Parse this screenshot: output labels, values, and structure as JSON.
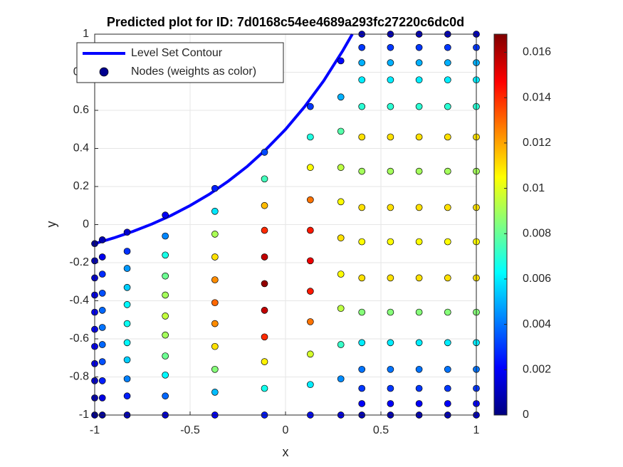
{
  "chart_data": {
    "type": "scatter",
    "title": "Predicted plot for ID: 7d0168c54ee4689a293fc27220c6dc0d",
    "xlabel": "x",
    "ylabel": "y",
    "xlim": [
      -1,
      1
    ],
    "ylim": [
      -1,
      1
    ],
    "xticks": [
      -1,
      -0.5,
      0,
      0.5,
      1
    ],
    "yticks": [
      -1,
      -0.8,
      -0.6,
      -0.4,
      -0.2,
      0,
      0.2,
      0.4,
      0.6,
      0.8,
      1
    ],
    "grid": true,
    "legend": "upper left",
    "colormap": "jet",
    "clim": [
      0,
      0.0168
    ],
    "cticks": [
      0,
      0.002,
      0.004,
      0.006,
      0.008,
      0.01,
      0.012,
      0.014,
      0.016
    ],
    "contour": {
      "name": "Level Set Contour",
      "color": "#0000ff",
      "x": [
        -1,
        -0.9,
        -0.8,
        -0.7,
        -0.6,
        -0.5,
        -0.4,
        -0.3,
        -0.2,
        -0.1,
        0,
        0.1,
        0.2,
        0.3,
        0.35
      ],
      "y": [
        -0.1,
        -0.07,
        -0.036,
        0.003,
        0.048,
        0.1,
        0.159,
        0.228,
        0.306,
        0.397,
        0.5,
        0.619,
        0.755,
        0.913,
        1
      ]
    },
    "series": [
      {
        "name": "Nodes (weights as color)",
        "color": "#00008f",
        "x": [
          -1,
          -1,
          -1,
          -1,
          -1,
          -1,
          -1,
          -1,
          -1,
          -1,
          -1,
          -0.96,
          -0.96,
          -0.96,
          -0.96,
          -0.96,
          -0.96,
          -0.96,
          -0.96,
          -0.96,
          -0.96,
          -0.96,
          -0.83,
          -0.83,
          -0.83,
          -0.83,
          -0.83,
          -0.83,
          -0.83,
          -0.83,
          -0.83,
          -0.83,
          -0.83,
          -0.63,
          -0.63,
          -0.63,
          -0.63,
          -0.63,
          -0.63,
          -0.63,
          -0.63,
          -0.63,
          -0.63,
          -0.63,
          -0.37,
          -0.37,
          -0.37,
          -0.37,
          -0.37,
          -0.37,
          -0.37,
          -0.37,
          -0.37,
          -0.37,
          -0.37,
          -0.11,
          -0.11,
          -0.11,
          -0.11,
          -0.11,
          -0.11,
          -0.11,
          -0.11,
          -0.11,
          -0.11,
          -0.11,
          0.13,
          0.13,
          0.13,
          0.13,
          0.13,
          0.13,
          0.13,
          0.13,
          0.13,
          0.13,
          0.13,
          0.29,
          0.29,
          0.29,
          0.29,
          0.29,
          0.29,
          0.29,
          0.29,
          0.29,
          0.29,
          0.29,
          0.4,
          0.4,
          0.4,
          0.4,
          0.4,
          0.4,
          0.4,
          0.4,
          0.4,
          0.4,
          0.4,
          0.4,
          0.4,
          0.4,
          0.4,
          0.4,
          0.55,
          0.55,
          0.55,
          0.55,
          0.55,
          0.55,
          0.55,
          0.55,
          0.55,
          0.55,
          0.55,
          0.55,
          0.55,
          0.55,
          0.55,
          0.55,
          0.7,
          0.7,
          0.7,
          0.7,
          0.7,
          0.7,
          0.7,
          0.7,
          0.7,
          0.7,
          0.7,
          0.7,
          0.7,
          0.7,
          0.7,
          0.7,
          0.85,
          0.85,
          0.85,
          0.85,
          0.85,
          0.85,
          0.85,
          0.85,
          0.85,
          0.85,
          0.85,
          0.85,
          0.85,
          0.85,
          0.85,
          0.85,
          1,
          1,
          1,
          1,
          1,
          1,
          1,
          1,
          1,
          1,
          1,
          1,
          1,
          1,
          1,
          1
        ],
        "y": [
          -0.1,
          -0.19,
          -0.28,
          -0.37,
          -0.46,
          -0.55,
          -0.64,
          -0.73,
          -0.82,
          -0.91,
          -1,
          -0.08,
          -0.17,
          -0.26,
          -0.36,
          -0.45,
          -0.54,
          -0.63,
          -0.72,
          -0.82,
          -0.91,
          -1,
          -0.04,
          -0.14,
          -0.23,
          -0.33,
          -0.42,
          -0.52,
          -0.62,
          -0.71,
          -0.81,
          -0.9,
          -1,
          0.05,
          -0.06,
          -0.16,
          -0.27,
          -0.37,
          -0.48,
          -0.58,
          -0.69,
          -0.79,
          -0.9,
          -1,
          0.19,
          0.07,
          -0.05,
          -0.17,
          -0.29,
          -0.41,
          -0.52,
          -0.64,
          -0.76,
          -0.88,
          -1,
          0.38,
          0.24,
          0.1,
          -0.03,
          -0.17,
          -0.31,
          -0.45,
          -0.59,
          -0.72,
          -0.86,
          -1,
          0.62,
          0.46,
          0.3,
          0.13,
          -0.03,
          -0.19,
          -0.35,
          -0.51,
          -0.68,
          -0.84,
          -1,
          0.86,
          0.67,
          0.49,
          0.3,
          0.12,
          -0.07,
          -0.26,
          -0.44,
          -0.63,
          -0.81,
          -1,
          1,
          0.93,
          0.85,
          0.76,
          0.62,
          0.46,
          0.28,
          0.09,
          -0.09,
          -0.28,
          -0.46,
          -0.62,
          -0.76,
          -0.86,
          -0.94,
          -1,
          1,
          0.93,
          0.85,
          0.76,
          0.62,
          0.46,
          0.28,
          0.09,
          -0.09,
          -0.28,
          -0.46,
          -0.62,
          -0.76,
          -0.86,
          -0.94,
          -1,
          1,
          0.93,
          0.85,
          0.76,
          0.62,
          0.46,
          0.28,
          0.09,
          -0.09,
          -0.28,
          -0.46,
          -0.62,
          -0.76,
          -0.86,
          -0.94,
          -1,
          1,
          0.93,
          0.85,
          0.76,
          0.62,
          0.46,
          0.28,
          0.09,
          -0.09,
          -0.28,
          -0.46,
          -0.62,
          -0.76,
          -0.86,
          -0.94,
          -1,
          1,
          0.93,
          0.85,
          0.76,
          0.62,
          0.46,
          0.28,
          0.09,
          -0.09,
          -0.28,
          -0.46,
          -0.62,
          -0.76,
          -0.86,
          -0.94,
          -1
        ],
        "weights": [
          0.0004,
          0.0009,
          0.0014,
          0.0017,
          0.0019,
          0.002,
          0.0019,
          0.0017,
          0.0013,
          0.0008,
          0.0003,
          0.0008,
          0.0018,
          0.0028,
          0.0034,
          0.0038,
          0.004,
          0.0038,
          0.0034,
          0.0026,
          0.0016,
          0.0006,
          0.0013,
          0.0029,
          0.0046,
          0.0055,
          0.0062,
          0.0065,
          0.0062,
          0.0055,
          0.0042,
          0.0026,
          0.001,
          0.0019,
          0.0043,
          0.0067,
          0.0081,
          0.009,
          0.0095,
          0.009,
          0.0081,
          0.0062,
          0.0038,
          0.0014,
          0.0026,
          0.0059,
          0.0091,
          0.011,
          0.0124,
          0.013,
          0.0124,
          0.011,
          0.0085,
          0.0052,
          0.002,
          0.0033,
          0.0074,
          0.0116,
          0.014,
          0.0157,
          0.0165,
          0.0157,
          0.014,
          0.0107,
          0.0066,
          0.0025,
          0.003,
          0.0068,
          0.0105,
          0.0128,
          0.0143,
          0.015,
          0.0143,
          0.0128,
          0.0098,
          0.006,
          0.0023,
          0.0022,
          0.005,
          0.0077,
          0.0094,
          0.0105,
          0.011,
          0.0105,
          0.0094,
          0.0072,
          0.0044,
          0.0017,
          0.001,
          0.003,
          0.005,
          0.006,
          0.007,
          0.011,
          0.009,
          0.011,
          0.0105,
          0.011,
          0.0085,
          0.006,
          0.004,
          0.003,
          0.002,
          0.001,
          0.001,
          0.003,
          0.005,
          0.006,
          0.007,
          0.011,
          0.009,
          0.011,
          0.0105,
          0.011,
          0.0085,
          0.006,
          0.004,
          0.003,
          0.002,
          0.001,
          0.001,
          0.003,
          0.005,
          0.006,
          0.007,
          0.011,
          0.009,
          0.011,
          0.0105,
          0.011,
          0.0085,
          0.006,
          0.004,
          0.003,
          0.002,
          0.001,
          0.001,
          0.003,
          0.005,
          0.006,
          0.007,
          0.011,
          0.009,
          0.011,
          0.0105,
          0.011,
          0.0085,
          0.006,
          0.004,
          0.003,
          0.002,
          0.001,
          0.001,
          0.003,
          0.005,
          0.006,
          0.007,
          0.011,
          0.009,
          0.011,
          0.0105,
          0.011,
          0.0085,
          0.006,
          0.004,
          0.003,
          0.002,
          0.001
        ]
      }
    ]
  }
}
